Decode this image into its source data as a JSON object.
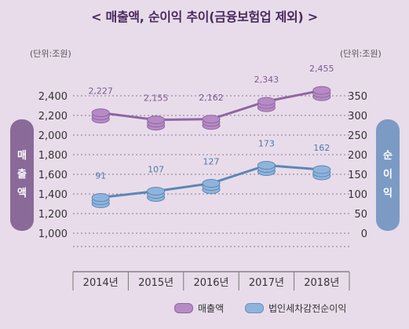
{
  "title": "< 매출액, 순이익 추이(금융보험업 제외) >",
  "unit_left": "(단위:조원)",
  "unit_right": "(단위:조원)",
  "left_axis_label": [
    "매",
    "출",
    "액"
  ],
  "right_axis_label": [
    "순",
    "이",
    "익"
  ],
  "colors": {
    "revenue": "#8e66a2",
    "net_income": "#5d86b5"
  },
  "chart_data": {
    "type": "line",
    "categories": [
      "2014년",
      "2015년",
      "2016년",
      "2017년",
      "2018년"
    ],
    "series": [
      {
        "name": "매출액",
        "axis": "left",
        "values": [
          2227,
          2155,
          2162,
          2343,
          2455
        ],
        "labels": [
          "2,227",
          "2,155",
          "2,162",
          "2,343",
          "2,455"
        ]
      },
      {
        "name": "법인세차감전순이익",
        "axis": "right",
        "values": [
          91,
          107,
          127,
          173,
          162
        ],
        "labels": [
          "91",
          "107",
          "127",
          "173",
          "162"
        ]
      }
    ],
    "left_ticks": [
      "1,000",
      "1,200",
      "1,400",
      "1,600",
      "1,800",
      "2,000",
      "2,200",
      "2,400"
    ],
    "left_tick_values": [
      1000,
      1200,
      1400,
      1600,
      1800,
      2000,
      2200,
      2400
    ],
    "right_ticks": [
      "0",
      "50",
      "100",
      "150",
      "200",
      "250",
      "300",
      "350"
    ],
    "right_tick_values": [
      0,
      50,
      100,
      150,
      200,
      250,
      300,
      350
    ],
    "ylim_left": [
      1000,
      2400
    ],
    "ylim_right": [
      0,
      350
    ],
    "grid": true
  }
}
